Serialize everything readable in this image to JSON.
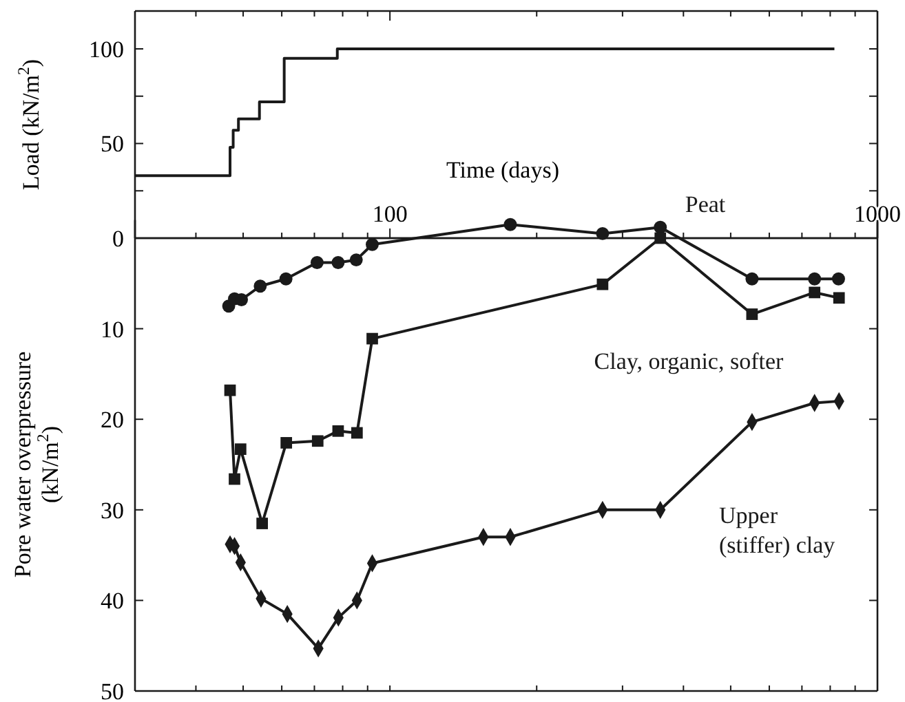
{
  "chart_data": [
    {
      "type": "step",
      "xlabel": "Time (days)",
      "ylabel": "Load (kN/m$^{2}$)",
      "log": "x",
      "xlim": [
        30,
        1000
      ],
      "xticks": [
        {
          "value": 40,
          "label": null
        },
        {
          "value": 50,
          "label": null
        },
        {
          "value": 60,
          "label": null
        },
        {
          "value": 70,
          "label": null
        },
        {
          "value": 80,
          "label": null
        },
        {
          "value": 90,
          "label": null
        },
        100,
        {
          "value": 200,
          "label": null
        },
        {
          "value": 300,
          "label": null
        },
        {
          "value": 400,
          "label": null
        },
        {
          "value": 500,
          "label": null
        },
        {
          "value": 600,
          "label": null
        },
        {
          "value": 700,
          "label": null
        },
        {
          "value": 800,
          "label": null
        },
        {
          "value": 900,
          "label": null
        },
        1000
      ],
      "ylim": [
        0,
        120
      ],
      "yticks": [
        {
          "value": 0,
          "label": null
        },
        {
          "value": 25,
          "label": null
        },
        50,
        {
          "value": 75,
          "label": null
        },
        100
      ],
      "x": [
        30,
        47,
        47.7,
        48.9,
        54,
        60.7,
        78,
        816
      ],
      "values": [
        33,
        48,
        57,
        63,
        72,
        95,
        100,
        100
      ],
      "color": "#1a1a1a"
    },
    {
      "type": "line",
      "ylabel": "Pore water overpressure (kN/m$^{2}$)",
      "log": "x",
      "xlim": [
        30,
        1000
      ],
      "tick_labels": "y",
      "xticks": [
        {
          "value": 40,
          "label": null
        },
        {
          "value": 50,
          "label": null
        },
        {
          "value": 60,
          "label": null
        },
        {
          "value": 70,
          "label": null
        },
        {
          "value": 80,
          "label": null
        },
        {
          "value": 90,
          "label": null
        },
        {
          "value": 100,
          "label": null
        },
        {
          "value": 200,
          "label": null
        },
        {
          "value": 300,
          "label": null
        },
        {
          "value": 400,
          "label": null
        },
        {
          "value": 500,
          "label": null
        },
        {
          "value": 600,
          "label": null
        },
        {
          "value": 700,
          "label": null
        },
        {
          "value": 800,
          "label": null
        },
        {
          "value": 900,
          "label": null
        },
        {
          "value": 1000,
          "label": null
        }
      ],
      "ylim": [
        50,
        -2
      ],
      "yticks": [
        0,
        10,
        20,
        30,
        40,
        50
      ],
      "series": [
        {
          "name": "Peat",
          "color": "#1a1a1a",
          "marker": "circle",
          "x": [
            46.7,
            48,
            49.6,
            54.2,
            61.2,
            70.9,
            78.3,
            85.3,
            92,
            176.6,
            273,
            358.6,
            553,
            743,
            832
          ],
          "values": [
            7.5,
            6.7,
            6.8,
            5.3,
            4.5,
            2.7,
            2.7,
            2.4,
            0.7,
            -1.5,
            -0.5,
            -1.2,
            4.5,
            4.5,
            4.5
          ]
        },
        {
          "name": "Clay, organic, softer",
          "color": "#1a1a1a",
          "marker": "square",
          "x": [
            47,
            48,
            49.4,
            54.7,
            61.3,
            71.1,
            78.3,
            85.6,
            92,
            273,
            358.6,
            553,
            743,
            834
          ],
          "values": [
            16.8,
            26.6,
            23.3,
            31.5,
            22.6,
            22.4,
            21.3,
            21.5,
            11.1,
            5.1,
            0,
            8.4,
            6,
            6.6
          ]
        },
        {
          "name": "Upper (stiffer) clay",
          "color": "#1a1a1a",
          "marker": "diamond",
          "x": [
            47,
            48,
            49.4,
            54.4,
            61.6,
            71.3,
            78.4,
            85.6,
            92,
            155.5,
            176.6,
            273,
            358.6,
            553,
            743,
            834
          ],
          "values": [
            33.8,
            34,
            35.8,
            39.8,
            41.5,
            45.3,
            41.9,
            40,
            35.9,
            33,
            33,
            30,
            30,
            20.3,
            18.2,
            18
          ]
        }
      ]
    }
  ]
}
